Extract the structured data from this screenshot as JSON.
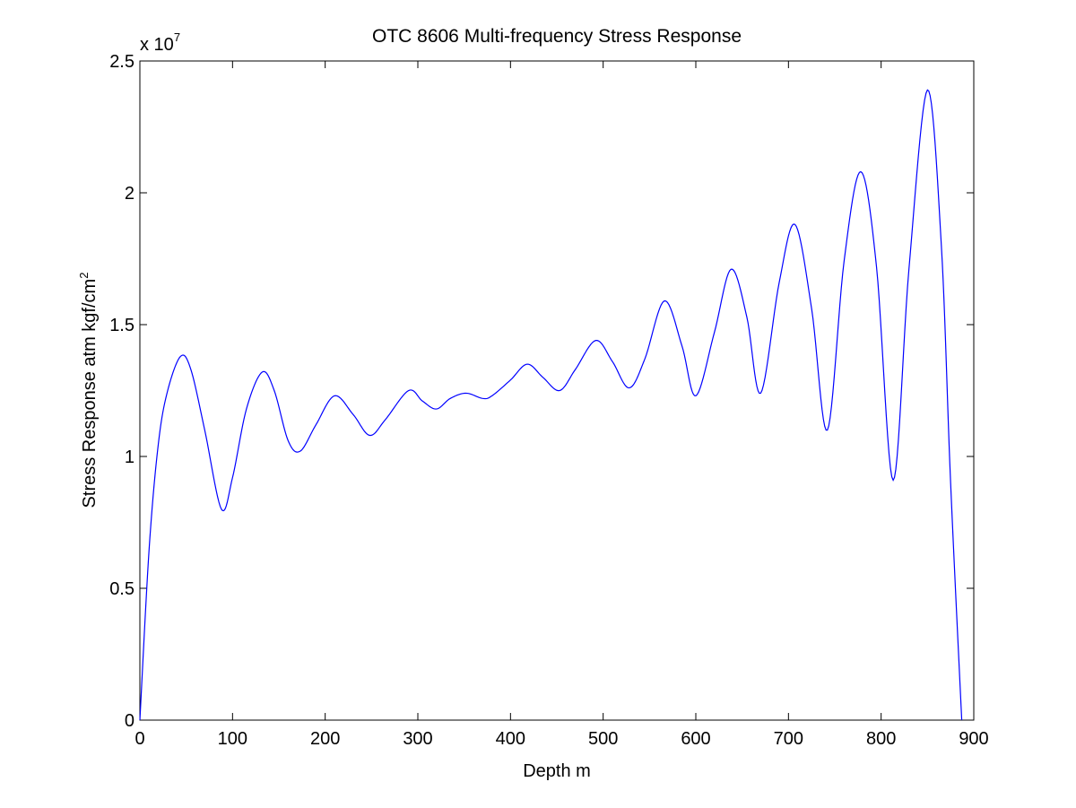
{
  "chart_data": {
    "type": "line",
    "title": "OTC 8606 Multi-frequency Stress Response",
    "xlabel": "Depth m",
    "ylabel": "Stress Response atm kgf/cm",
    "ylabel_superscript": "2",
    "y_exponent_base": "x 10",
    "y_exponent_power": "7",
    "xlim": [
      0,
      900
    ],
    "ylim": [
      0,
      2.5
    ],
    "x_ticks": [
      0,
      100,
      200,
      300,
      400,
      500,
      600,
      700,
      800,
      900
    ],
    "y_ticks": [
      0,
      0.5,
      1,
      1.5,
      2,
      2.5
    ],
    "x_tick_labels": [
      "0",
      "100",
      "200",
      "300",
      "400",
      "500",
      "600",
      "700",
      "800",
      "900"
    ],
    "y_tick_labels": [
      "0",
      "0.5",
      "1",
      "1.5",
      "2",
      "2.5"
    ],
    "grid": false,
    "line_color": "#0000ff",
    "series": [
      {
        "name": "Stress Response",
        "x": [
          0,
          10,
          20,
          30,
          44,
          55,
          70,
          88,
          100,
          115,
          132,
          145,
          160,
          173,
          190,
          210,
          230,
          248,
          265,
          290,
          305,
          320,
          335,
          352,
          370,
          380,
          400,
          418,
          435,
          453,
          470,
          492,
          510,
          528,
          545,
          566,
          585,
          600,
          620,
          638,
          655,
          670,
          690,
          707,
          725,
          742,
          760,
          778,
          795,
          813,
          830,
          850,
          865,
          875,
          887
        ],
        "y": [
          0.0,
          0.65,
          1.05,
          1.25,
          1.38,
          1.33,
          1.1,
          0.8,
          0.92,
          1.18,
          1.32,
          1.25,
          1.06,
          1.02,
          1.12,
          1.23,
          1.16,
          1.08,
          1.14,
          1.25,
          1.21,
          1.18,
          1.22,
          1.24,
          1.22,
          1.23,
          1.29,
          1.35,
          1.3,
          1.25,
          1.33,
          1.44,
          1.36,
          1.26,
          1.37,
          1.59,
          1.42,
          1.23,
          1.47,
          1.71,
          1.53,
          1.24,
          1.66,
          1.88,
          1.56,
          1.1,
          1.74,
          2.08,
          1.72,
          0.91,
          1.71,
          2.39,
          1.8,
          0.9,
          0.0
        ]
      }
    ]
  }
}
